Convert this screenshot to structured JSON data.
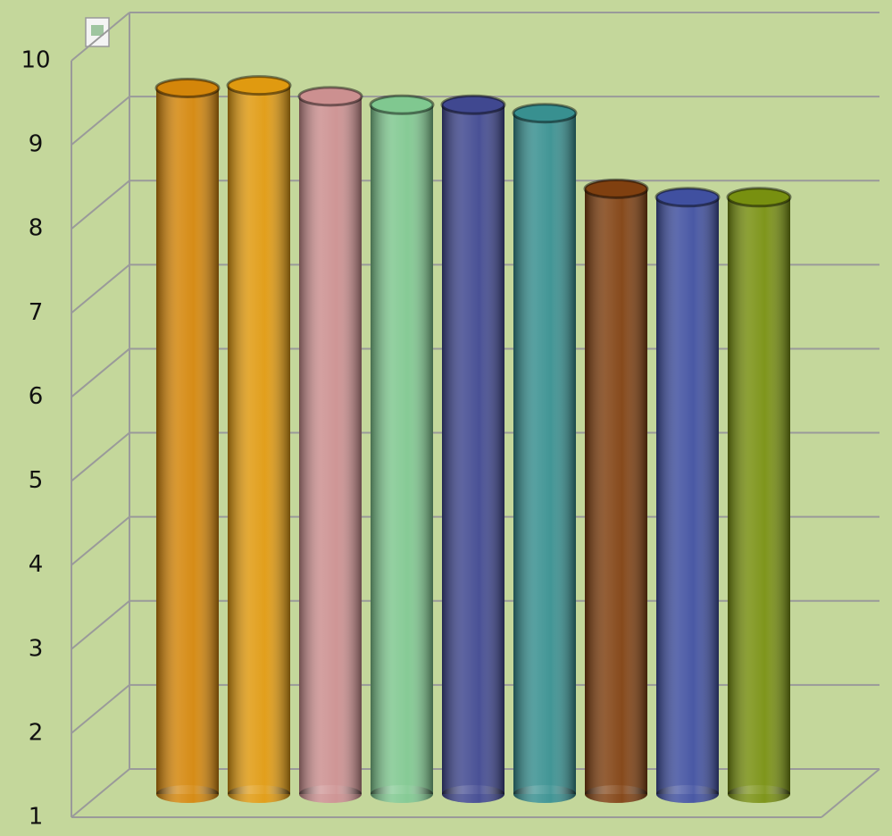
{
  "chart_data": {
    "type": "bar",
    "values": [
      9.4,
      9.43,
      9.3,
      9.2,
      9.2,
      9.1,
      8.2,
      8.1,
      8.1
    ],
    "colors": [
      "#d4860a",
      "#e09a10",
      "#cc9090",
      "#80c890",
      "#404890",
      "#389090",
      "#804010",
      "#4050a0",
      "#789010"
    ],
    "ylim": [
      1,
      10
    ],
    "yticks": [
      1,
      2,
      3,
      4,
      5,
      6,
      7,
      8,
      9,
      10
    ],
    "grid": true
  }
}
